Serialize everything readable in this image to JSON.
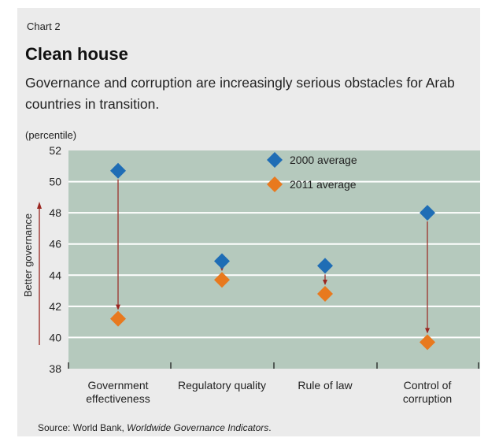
{
  "header": {
    "chart_label": "Chart 2",
    "title": "Clean house",
    "subtitle": "Governance and corruption are increasingly serious obstacles for Arab countries in transition.",
    "unit": "(percentile)"
  },
  "footer": {
    "source_prefix": "Source: World Bank, ",
    "source_title": "Worldwide Governance Indicators",
    "source_suffix": "."
  },
  "y_axis_arrow_label": "Better governance",
  "colors": {
    "plot_bg": "#b5c9bd",
    "panel_bg": "#ebebeb",
    "series_2000": "#1f6db5",
    "series_2011": "#e8791e",
    "arrow": "#9a2620",
    "grid": "#ffffff"
  },
  "chart_data": {
    "type": "scatter",
    "categories": [
      "Government\neffectiveness",
      "Regulatory quality",
      "Rule of law",
      "Control of\ncorruption"
    ],
    "series": [
      {
        "name": "2000 average",
        "values": [
          50.7,
          44.9,
          44.6,
          48.0
        ]
      },
      {
        "name": "2011 average",
        "values": [
          41.2,
          43.7,
          42.8,
          39.7
        ]
      }
    ],
    "ylim": [
      38,
      52
    ],
    "yticks": [
      38,
      40,
      42,
      44,
      46,
      48,
      50,
      52
    ],
    "grid": true,
    "legend": "top-center"
  }
}
